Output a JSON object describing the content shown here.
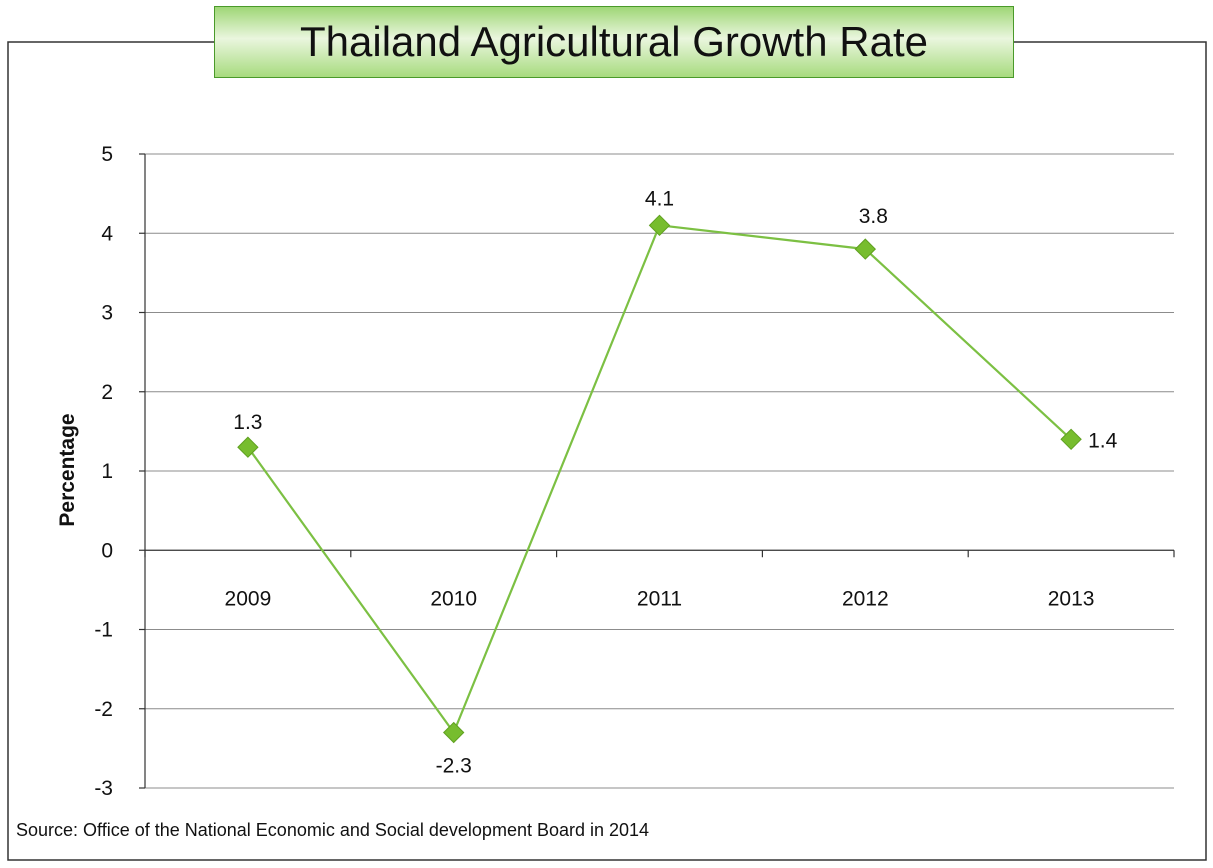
{
  "title": "Thailand Agricultural Growth Rate",
  "source": "Source:  Office of the National Economic and Social development Board in 2014",
  "colors": {
    "series": "#7cc043",
    "marker": "#77bd2e",
    "grid": "#8c8c8c",
    "frame": "#333333",
    "title_border": "#4a9a2a"
  },
  "chart_data": {
    "type": "line",
    "title": "Thailand Agricultural Growth Rate",
    "xlabel": "",
    "ylabel": "Percentage",
    "categories": [
      "2009",
      "2010",
      "2011",
      "2012",
      "2013"
    ],
    "series": [
      {
        "values": [
          1.3,
          -2.3,
          4.1,
          3.8,
          1.4
        ],
        "marker": "diamond"
      }
    ],
    "data_labels": [
      "1.3",
      "-2.3",
      "4.1",
      "3.8",
      "1.4"
    ],
    "ylim": [
      -3,
      5
    ],
    "yticks": [
      -3,
      -2,
      -1,
      0,
      1,
      2,
      3,
      4,
      5
    ],
    "grid": true,
    "legend": "none"
  }
}
